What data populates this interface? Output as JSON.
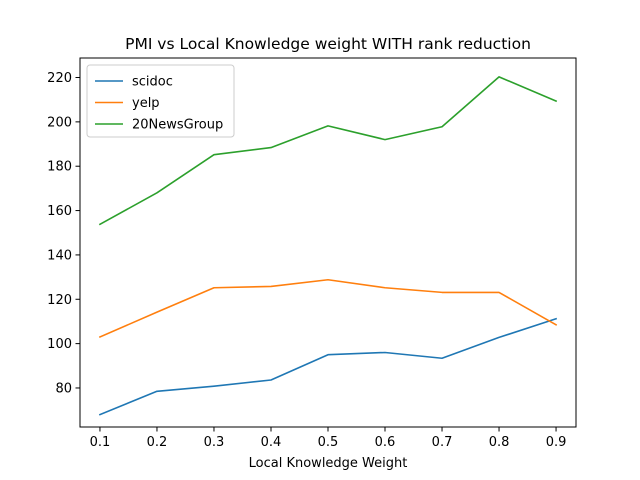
{
  "chart_data": {
    "type": "line",
    "title": "PMI vs Local Knowledge weight WITH rank reduction",
    "xlabel": "Local Knowledge Weight",
    "ylabel": "",
    "x": [
      0.1,
      0.2,
      0.3,
      0.4,
      0.5,
      0.6,
      0.7,
      0.8,
      0.9
    ],
    "xlim": [
      0.065,
      0.935
    ],
    "ylim": [
      62.4,
      228.8
    ],
    "xticks": [
      0.1,
      0.2,
      0.3,
      0.4,
      0.5,
      0.6,
      0.7,
      0.8,
      0.9
    ],
    "xtick_labels": [
      "0.1",
      "0.2",
      "0.3",
      "0.4",
      "0.5",
      "0.6",
      "0.7",
      "0.8",
      "0.9"
    ],
    "yticks": [
      80,
      100,
      120,
      140,
      160,
      180,
      200,
      220
    ],
    "ytick_labels": [
      "80",
      "100",
      "120",
      "140",
      "160",
      "180",
      "200",
      "220"
    ],
    "grid": false,
    "legend_position": "upper-left",
    "series": [
      {
        "name": "scidoc",
        "color": "#1f77b4",
        "values": [
          68,
          78.5,
          80.8,
          83.6,
          95,
          96,
          93.4,
          102.8,
          111.2
        ]
      },
      {
        "name": "yelp",
        "color": "#ff7f0e",
        "values": [
          103,
          114.2,
          125.2,
          125.8,
          128.8,
          125.2,
          123.1,
          123.1,
          108.5
        ]
      },
      {
        "name": "20NewsGroup",
        "color": "#2ca02c",
        "values": [
          153.8,
          168,
          185.2,
          188.4,
          198.2,
          192,
          197.8,
          220.3,
          209.4
        ]
      }
    ]
  }
}
